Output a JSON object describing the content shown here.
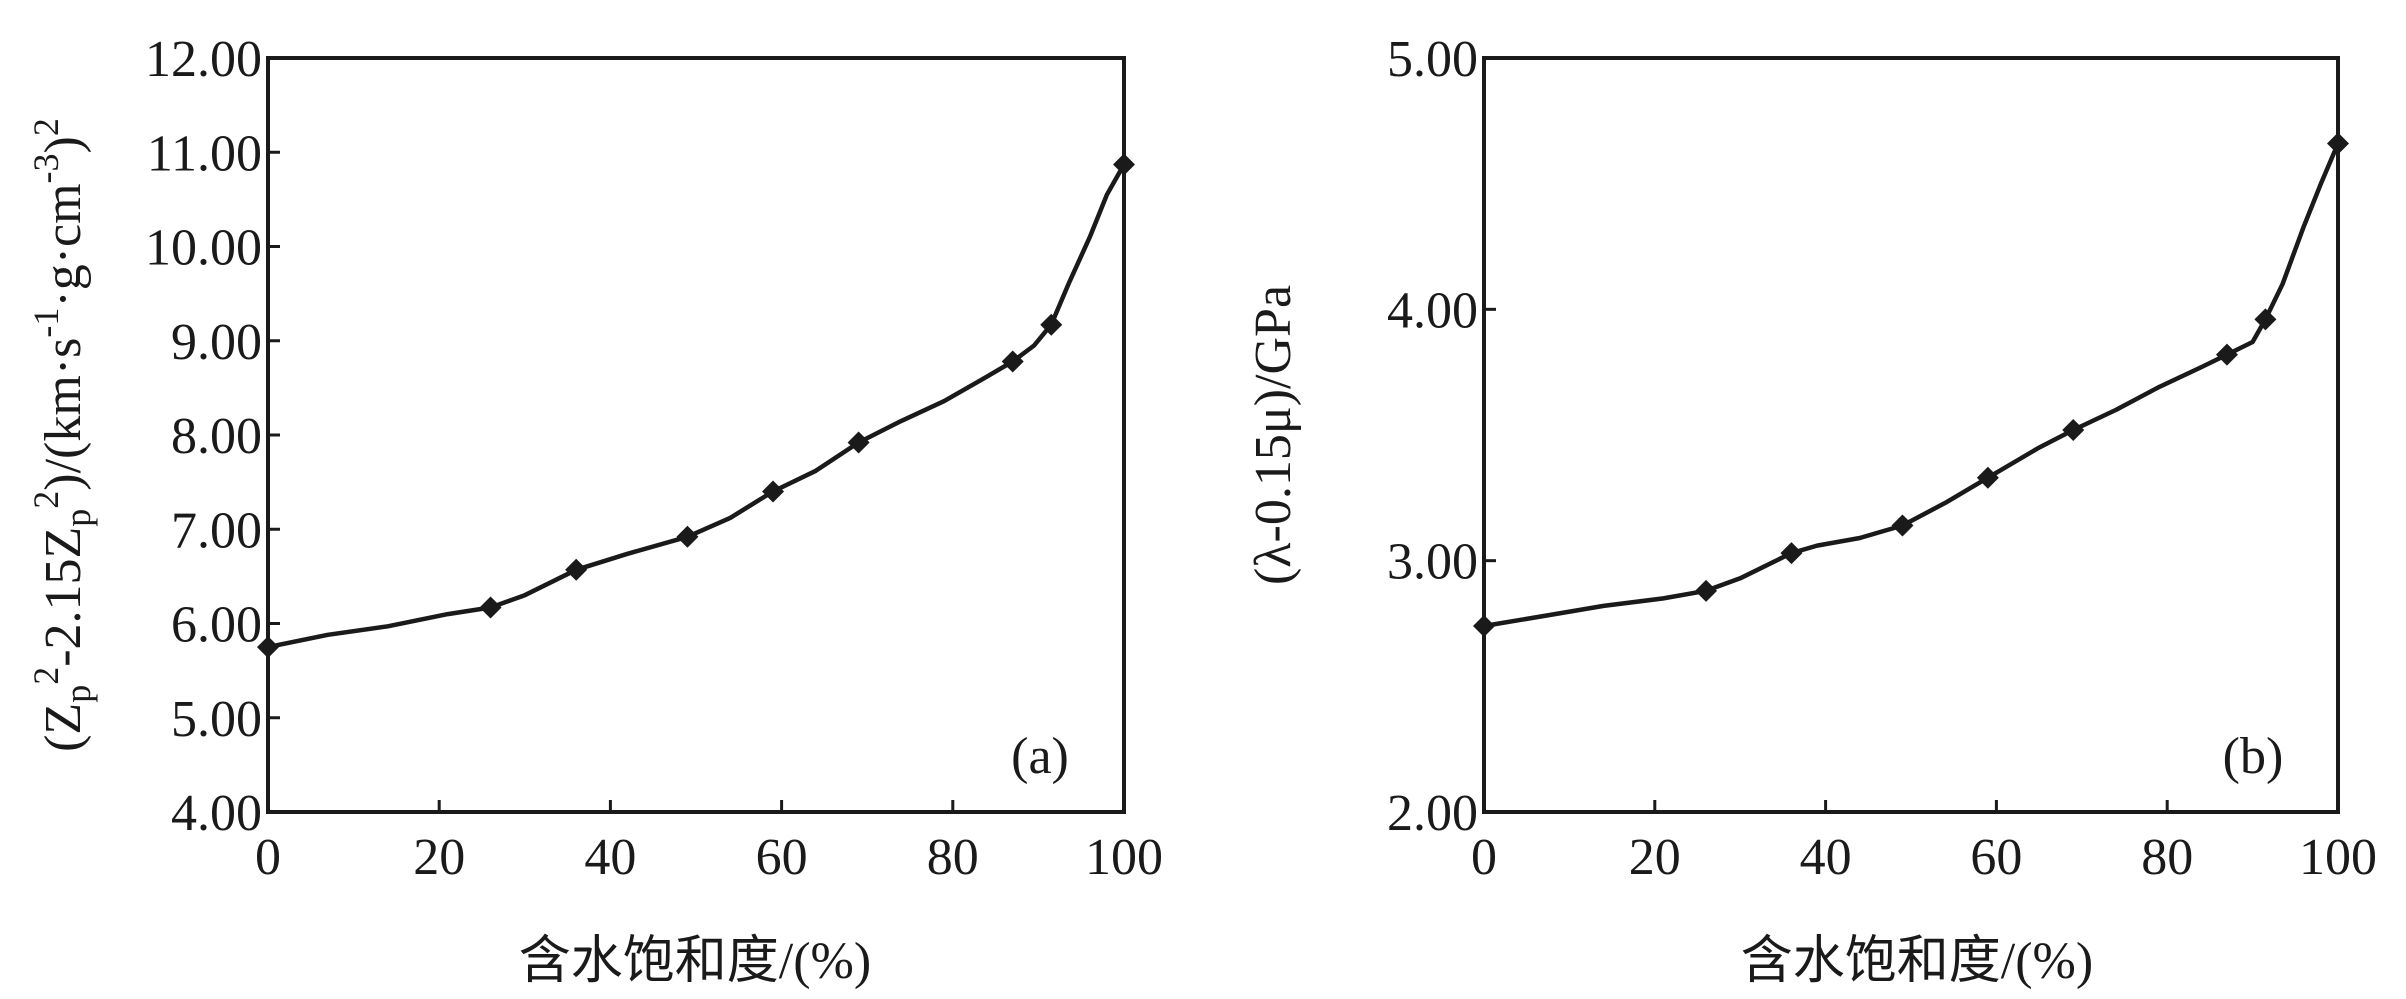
{
  "chart_data": [
    {
      "type": "line",
      "panel_label": "(a)",
      "xlabel": "含水饱和度/(%)",
      "ylabel_parts": [
        "(Z",
        "p",
        "2",
        "-2.15Z",
        "p",
        "2",
        ")/(km·s",
        "-1",
        "·g·cm",
        "-3",
        ")",
        "2"
      ],
      "xlim": [
        0,
        100
      ],
      "ylim": [
        4,
        12
      ],
      "xticks": [
        0,
        20,
        40,
        60,
        80,
        100
      ],
      "xtick_labels": [
        "0",
        "20",
        "40",
        "60",
        "80",
        "100"
      ],
      "yticks": [
        4,
        5,
        6,
        7,
        8,
        9,
        10,
        11,
        12
      ],
      "ytick_labels": [
        "4.00",
        "5.00",
        "6.00",
        "7.00",
        "8.00",
        "9.00",
        "10.00",
        "11.00",
        "12.00"
      ],
      "grid": false,
      "markers": [
        {
          "x": 0,
          "y": 5.75
        },
        {
          "x": 26,
          "y": 6.17
        },
        {
          "x": 36,
          "y": 6.57
        },
        {
          "x": 49,
          "y": 6.92
        },
        {
          "x": 59,
          "y": 7.4
        },
        {
          "x": 69,
          "y": 7.92
        },
        {
          "x": 87,
          "y": 8.78
        },
        {
          "x": 91.5,
          "y": 9.17
        },
        {
          "x": 100,
          "y": 10.87
        }
      ],
      "curve": [
        [
          0,
          5.75
        ],
        [
          7,
          5.88
        ],
        [
          14,
          5.97
        ],
        [
          21,
          6.1
        ],
        [
          26,
          6.17
        ],
        [
          30,
          6.3
        ],
        [
          36,
          6.57
        ],
        [
          42,
          6.74
        ],
        [
          49,
          6.92
        ],
        [
          54,
          7.12
        ],
        [
          59,
          7.4
        ],
        [
          64,
          7.62
        ],
        [
          69,
          7.92
        ],
        [
          74,
          8.15
        ],
        [
          79,
          8.36
        ],
        [
          84,
          8.62
        ],
        [
          87,
          8.78
        ],
        [
          89.5,
          8.95
        ],
        [
          91.5,
          9.17
        ],
        [
          93.5,
          9.6
        ],
        [
          96,
          10.1
        ],
        [
          98,
          10.55
        ],
        [
          100,
          10.87
        ]
      ]
    },
    {
      "type": "line",
      "panel_label": "(b)",
      "xlabel": "含水饱和度/(%)",
      "ylabel": "(λ-0.15μ)/GPa",
      "xlim": [
        0,
        100
      ],
      "ylim": [
        2,
        5
      ],
      "xticks": [
        0,
        20,
        40,
        60,
        80,
        100
      ],
      "xtick_labels": [
        "0",
        "20",
        "40",
        "60",
        "80",
        "100"
      ],
      "yticks": [
        2,
        3,
        4,
        5
      ],
      "ytick_labels": [
        "2.00",
        "3.00",
        "4.00",
        "5.00"
      ],
      "grid": false,
      "markers": [
        {
          "x": 0,
          "y": 2.74
        },
        {
          "x": 26,
          "y": 2.88
        },
        {
          "x": 36,
          "y": 3.03
        },
        {
          "x": 49,
          "y": 3.14
        },
        {
          "x": 59,
          "y": 3.33
        },
        {
          "x": 69,
          "y": 3.52
        },
        {
          "x": 87,
          "y": 3.82
        },
        {
          "x": 91.5,
          "y": 3.96
        },
        {
          "x": 100,
          "y": 4.66
        }
      ],
      "curve": [
        [
          0,
          2.74
        ],
        [
          7,
          2.78
        ],
        [
          14,
          2.82
        ],
        [
          21,
          2.85
        ],
        [
          26,
          2.88
        ],
        [
          30,
          2.93
        ],
        [
          36,
          3.03
        ],
        [
          39,
          3.06
        ],
        [
          44,
          3.09
        ],
        [
          49,
          3.14
        ],
        [
          54,
          3.23
        ],
        [
          59,
          3.33
        ],
        [
          65,
          3.45
        ],
        [
          69,
          3.52
        ],
        [
          74,
          3.6
        ],
        [
          79,
          3.69
        ],
        [
          84,
          3.77
        ],
        [
          87,
          3.82
        ],
        [
          90,
          3.87
        ],
        [
          91.5,
          3.96
        ],
        [
          93.5,
          4.1
        ],
        [
          96,
          4.33
        ],
        [
          98,
          4.5
        ],
        [
          100,
          4.66
        ]
      ]
    }
  ]
}
